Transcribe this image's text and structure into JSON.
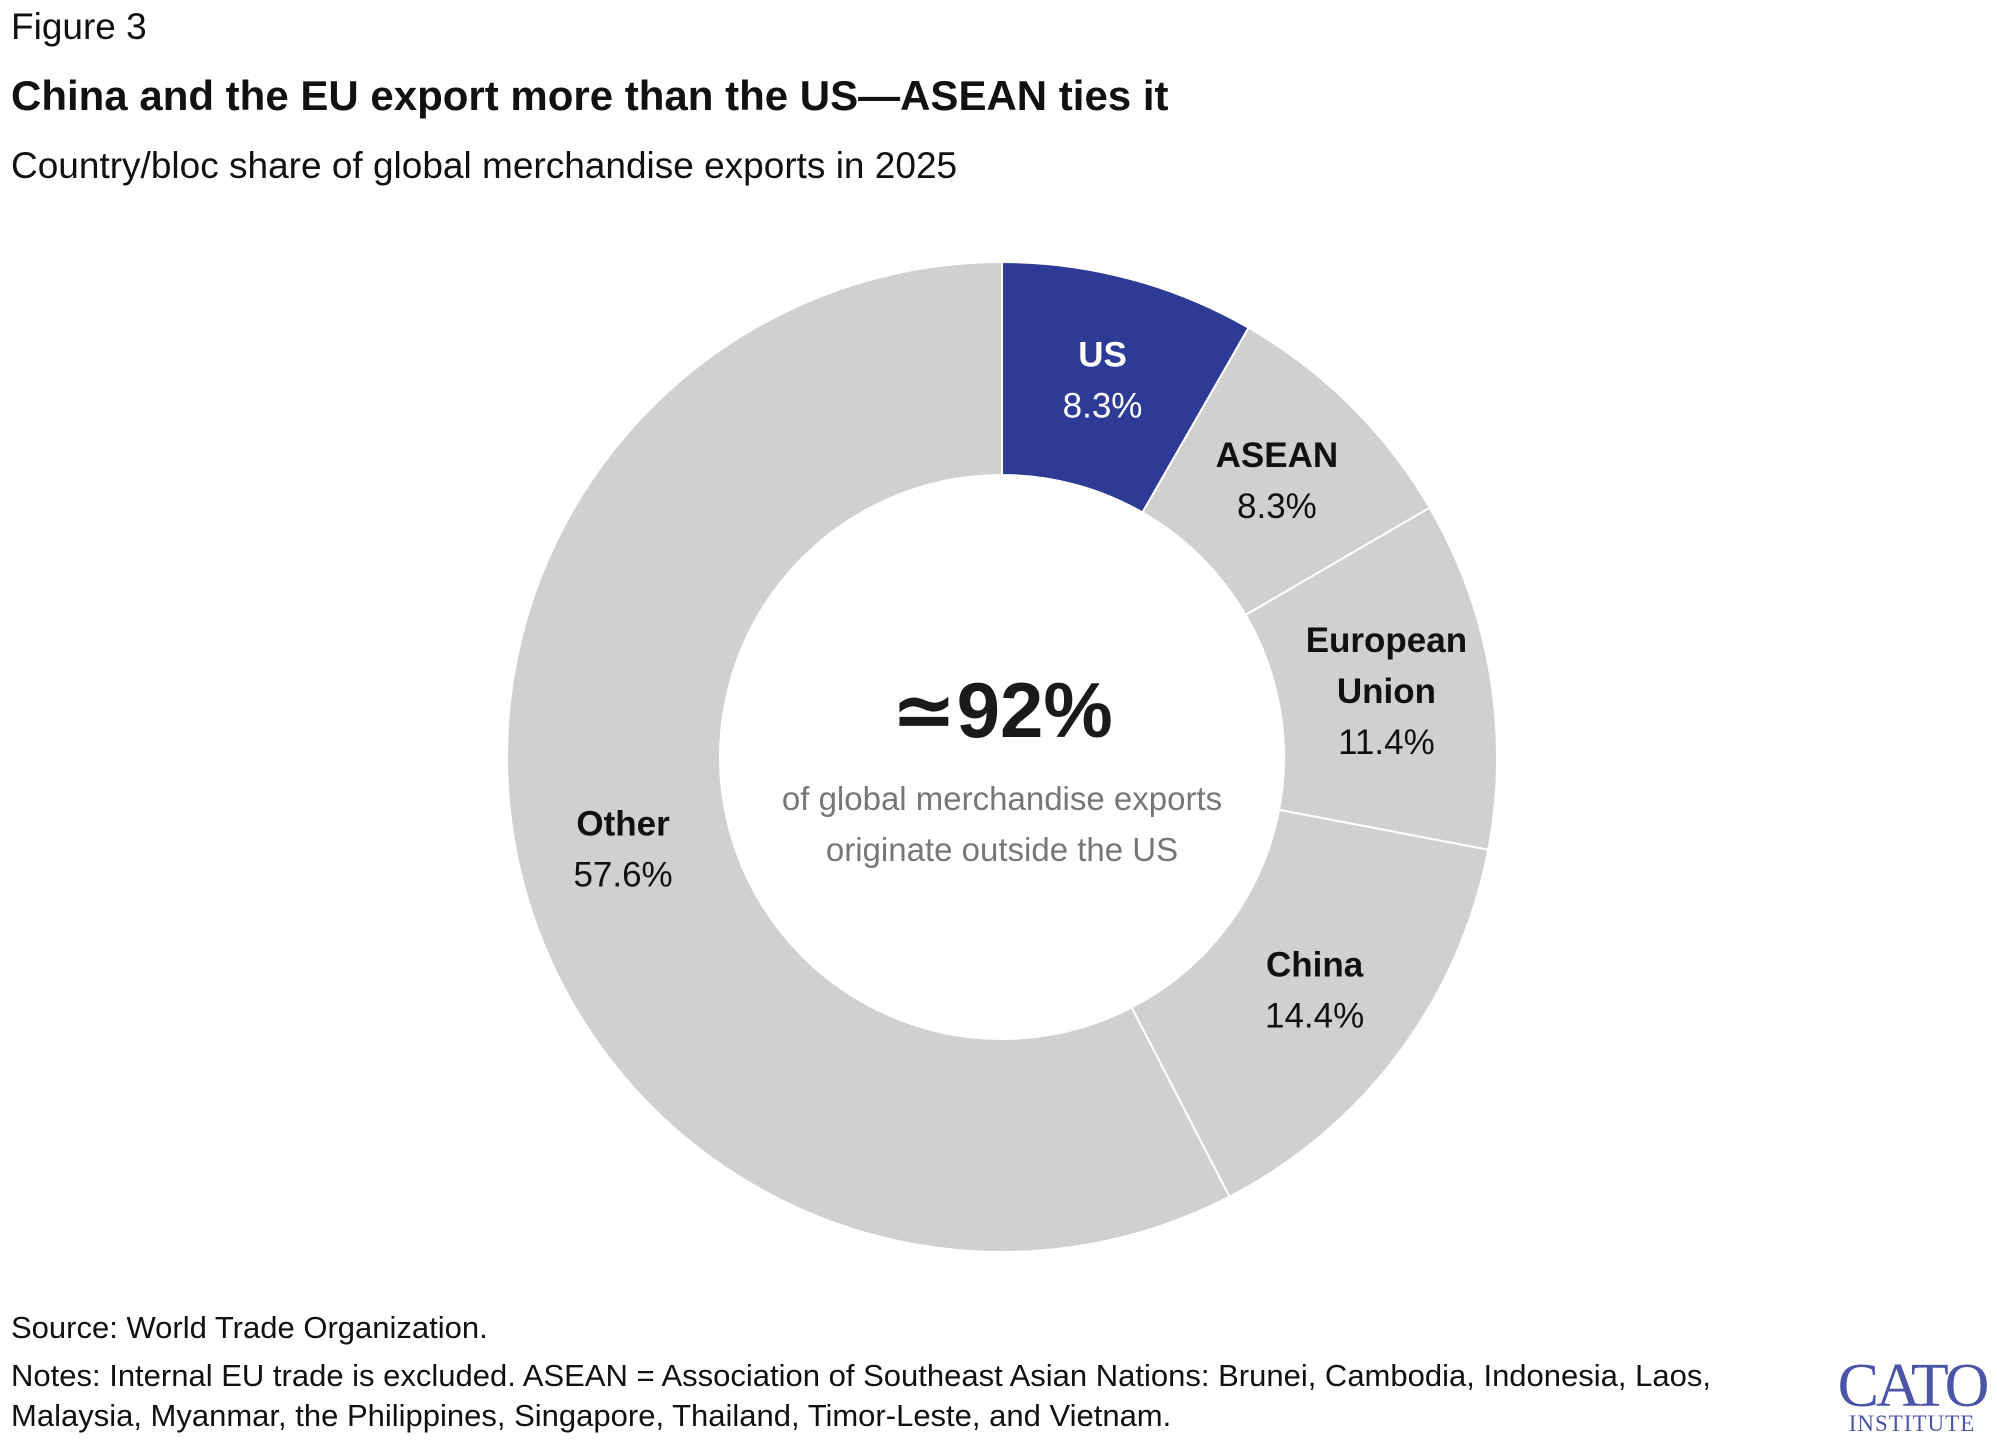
{
  "figure": {
    "label": "Figure 3",
    "title": "China and the EU export more than the US—ASEAN ties it",
    "subtitle": "Country/bloc share of global merchandise exports in 2025"
  },
  "chart_data": {
    "type": "pie",
    "variant": "donut",
    "title": "China and the EU export more than the US—ASEAN ties it",
    "subtitle": "Country/bloc share of global merchandise exports in 2025",
    "unit": "%",
    "slices": [
      {
        "name": "US",
        "label_lines": [
          "US"
        ],
        "value": 8.3,
        "value_label": "8.3%",
        "color": "#2d3a96",
        "text_color": "#ffffff",
        "value_color": "#ffffff"
      },
      {
        "name": "ASEAN",
        "label_lines": [
          "ASEAN"
        ],
        "value": 8.3,
        "value_label": "8.3%",
        "color": "#d0d0d0",
        "text_color": "#111111",
        "value_color": "#111111"
      },
      {
        "name": "European Union",
        "label_lines": [
          "European",
          "Union"
        ],
        "value": 11.4,
        "value_label": "11.4%",
        "color": "#d0d0d0",
        "text_color": "#111111",
        "value_color": "#111111"
      },
      {
        "name": "China",
        "label_lines": [
          "China"
        ],
        "value": 14.4,
        "value_label": "14.4%",
        "color": "#d0d0d0",
        "text_color": "#111111",
        "value_color": "#111111"
      },
      {
        "name": "Other",
        "label_lines": [
          "Other"
        ],
        "value": 57.6,
        "value_label": "57.6%",
        "color": "#d0d0d0",
        "text_color": "#111111",
        "value_color": "#111111"
      }
    ],
    "center": {
      "value": "≃92%",
      "caption_lines": [
        "of global merchandise exports",
        "originate outside the US"
      ]
    },
    "start_angle": "top",
    "direction": "clockwise"
  },
  "footer": {
    "source": "Source: World Trade Organization.",
    "notes": "Notes: Internal EU trade is excluded. ASEAN = Association of Southeast Asian Nations: Brunei, Cambodia, Indonesia, Laos, Malaysia, Myanmar, the Philippines, Singapore, Thailand, Timor-Leste, and Vietnam."
  },
  "logo": {
    "main": "CATO",
    "sub": "INSTITUTE"
  },
  "colors": {
    "accent": "#2d3a96",
    "neutral": "#d0d0d0",
    "caption": "#777777",
    "logo": "#4b55a8"
  }
}
